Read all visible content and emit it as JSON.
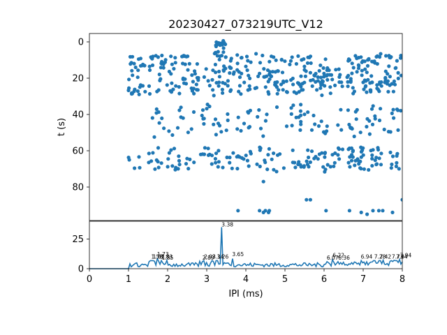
{
  "chart_data": [
    {
      "type": "scatter",
      "title": "20230427_073219UTC_V12",
      "xlabel": "",
      "ylabel": "t (s)",
      "xlim": [
        0,
        8
      ],
      "ylim": [
        0,
        100
      ],
      "y_inverted": true,
      "yticks": [
        "0",
        "20",
        "40",
        "60",
        "80"
      ],
      "color": "#1f77b4",
      "x_shared_with": "histogram",
      "bands": [
        {
          "t_range": [
            7,
            29
          ],
          "x_range": [
            1.0,
            8.0
          ],
          "dots": 380
        },
        {
          "t_range": [
            35,
            52
          ],
          "x_range": [
            1.6,
            8.0
          ],
          "dots": 110
        },
        {
          "t_range": [
            58,
            71
          ],
          "x_range": [
            1.0,
            8.0
          ],
          "dots": 170
        },
        {
          "t_range": [
            0,
            9
          ],
          "x_range": [
            3.2,
            3.5
          ],
          "dots": 25
        }
      ],
      "extra_points": [
        {
          "x": 4.45,
          "y": 77
        },
        {
          "x": 4.35,
          "y": 93
        },
        {
          "x": 4.5,
          "y": 93
        },
        {
          "x": 4.6,
          "y": 93
        },
        {
          "x": 4.45,
          "y": 94
        },
        {
          "x": 4.58,
          "y": 94
        },
        {
          "x": 3.8,
          "y": 93
        },
        {
          "x": 5.55,
          "y": 87
        },
        {
          "x": 5.65,
          "y": 87
        },
        {
          "x": 6.05,
          "y": 93
        },
        {
          "x": 6.65,
          "y": 93
        },
        {
          "x": 6.95,
          "y": 94
        },
        {
          "x": 7.1,
          "y": 95
        },
        {
          "x": 7.25,
          "y": 93
        },
        {
          "x": 7.4,
          "y": 93
        },
        {
          "x": 7.5,
          "y": 93
        },
        {
          "x": 7.75,
          "y": 94
        },
        {
          "x": 8.0,
          "y": 87
        }
      ]
    },
    {
      "type": "line",
      "title": "",
      "xlabel": "IPI (ms)",
      "ylabel": "",
      "xlim": [
        0,
        8
      ],
      "ylim": [
        0,
        40
      ],
      "xticks": [
        "0",
        "1",
        "2",
        "3",
        "4",
        "5",
        "6",
        "7",
        "8"
      ],
      "yticks": [
        "0",
        "25"
      ],
      "color": "#1f77b4",
      "baseline_end_x": 1.0,
      "peak": {
        "x": 3.38,
        "y": 35
      },
      "annotations": [
        {
          "label": "1.58",
          "x": 1.58,
          "y": 8
        },
        {
          "label": "1.62",
          "x": 1.62,
          "y": 8
        },
        {
          "label": "1.73",
          "x": 1.73,
          "y": 10
        },
        {
          "label": "1.83",
          "x": 1.83,
          "y": 8
        },
        {
          "label": "1.85",
          "x": 1.85,
          "y": 7
        },
        {
          "label": "2.89",
          "x": 2.89,
          "y": 7
        },
        {
          "label": "2.93",
          "x": 2.93,
          "y": 8
        },
        {
          "label": "3.14",
          "x": 3.14,
          "y": 8
        },
        {
          "label": "3.26",
          "x": 3.26,
          "y": 8
        },
        {
          "label": "3.38",
          "x": 3.38,
          "y": 35
        },
        {
          "label": "3.65",
          "x": 3.65,
          "y": 10
        },
        {
          "label": "6.07",
          "x": 6.07,
          "y": 7
        },
        {
          "label": "6.22",
          "x": 6.22,
          "y": 9
        },
        {
          "label": "6.36",
          "x": 6.36,
          "y": 7
        },
        {
          "label": "6.94",
          "x": 6.94,
          "y": 8
        },
        {
          "label": "7.28",
          "x": 7.28,
          "y": 8
        },
        {
          "label": "7.42",
          "x": 7.42,
          "y": 8
        },
        {
          "label": "7.73",
          "x": 7.73,
          "y": 8
        },
        {
          "label": "7.84",
          "x": 7.84,
          "y": 8
        },
        {
          "label": "7.94",
          "x": 7.94,
          "y": 9
        }
      ]
    }
  ]
}
